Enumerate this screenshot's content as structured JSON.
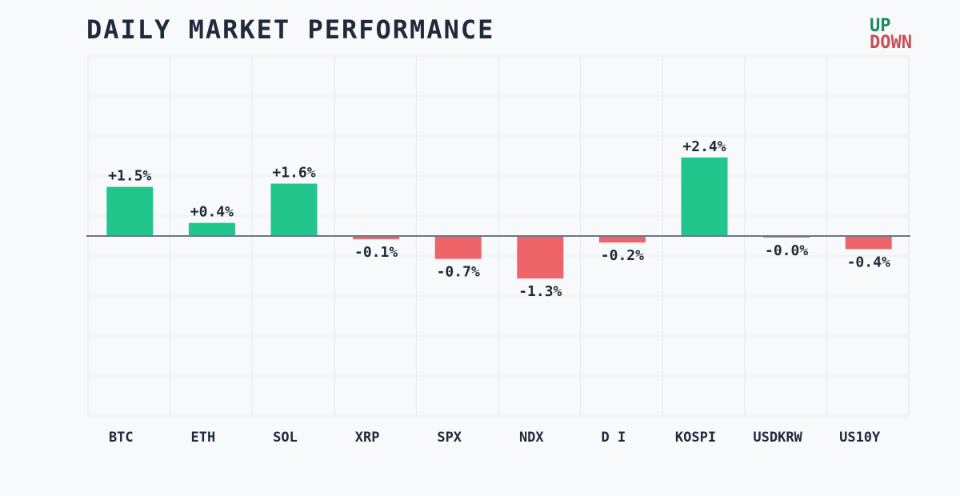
{
  "chart_data": {
    "type": "bar",
    "title": "DAILY MARKET PERFORMANCE",
    "legend": {
      "up": "UP",
      "down": "DOWN",
      "placement": "top-right"
    },
    "categories": [
      "BTC",
      "ETH",
      "SOL",
      "XRP",
      "SPX",
      "NDX",
      "D I",
      "KOSPI",
      "USDKRW",
      "US10Y"
    ],
    "values": [
      1.5,
      0.4,
      1.6,
      -0.1,
      -0.7,
      -1.3,
      -0.2,
      2.4,
      -0.04,
      -0.4
    ],
    "labels": [
      "+1.5%",
      "+0.4%",
      "+1.6%",
      "-0.1%",
      "-0.7%",
      "-1.3%",
      "-0.2%",
      "+2.4%",
      "-0.0%",
      "-0.4%"
    ],
    "ylim": [
      -5.5,
      5.5
    ],
    "grid": true,
    "colors": {
      "up": "#22c58b",
      "down": "#ee6468",
      "zero_line": "#6b7788"
    }
  }
}
